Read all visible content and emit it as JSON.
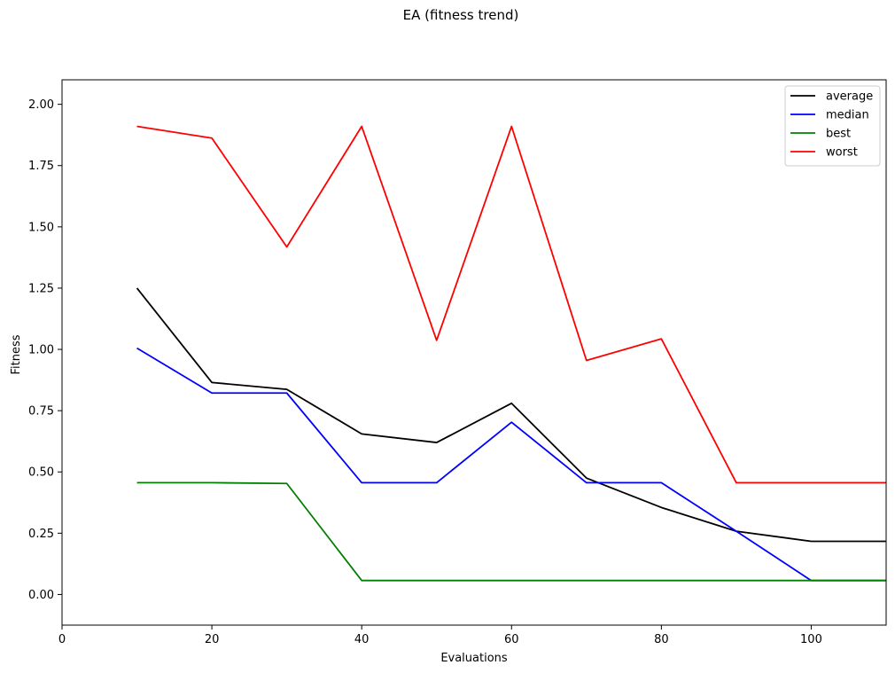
{
  "chart_data": {
    "type": "line",
    "title": "EA (fitness trend)",
    "xlabel": "Evaluations",
    "ylabel": "Fitness",
    "xlim": [
      0,
      110
    ],
    "ylim": [
      -0.125,
      2.1
    ],
    "xticks": [
      0,
      20,
      40,
      60,
      80,
      100
    ],
    "xtick_labels": [
      "0",
      "20",
      "40",
      "60",
      "80",
      "100"
    ],
    "yticks": [
      0.0,
      0.25,
      0.5,
      0.75,
      1.0,
      1.25,
      1.5,
      1.75,
      2.0
    ],
    "ytick_labels": [
      "0.00",
      "0.25",
      "0.50",
      "0.75",
      "1.00",
      "1.25",
      "1.50",
      "1.75",
      "2.00"
    ],
    "grid": false,
    "legend_position": "top-right",
    "x": [
      10,
      20,
      30,
      40,
      50,
      60,
      70,
      80,
      90,
      100,
      110
    ],
    "series": [
      {
        "name": "average",
        "color": "#000000",
        "values": [
          1.25,
          0.865,
          0.837,
          0.655,
          0.62,
          0.78,
          0.475,
          0.355,
          0.258,
          0.217,
          0.217
        ]
      },
      {
        "name": "median",
        "color": "#0000ff",
        "values": [
          1.005,
          0.822,
          0.822,
          0.456,
          0.456,
          0.703,
          0.456,
          0.456,
          0.258,
          0.057,
          0.057
        ]
      },
      {
        "name": "best",
        "color": "#008000",
        "values": [
          0.456,
          0.456,
          0.453,
          0.057,
          0.057,
          0.057,
          0.057,
          0.057,
          0.057,
          0.057,
          0.057
        ]
      },
      {
        "name": "worst",
        "color": "#ff0000",
        "values": [
          1.91,
          1.862,
          1.418,
          1.91,
          1.037,
          1.91,
          0.955,
          1.043,
          0.456,
          0.456,
          0.456
        ]
      }
    ]
  }
}
